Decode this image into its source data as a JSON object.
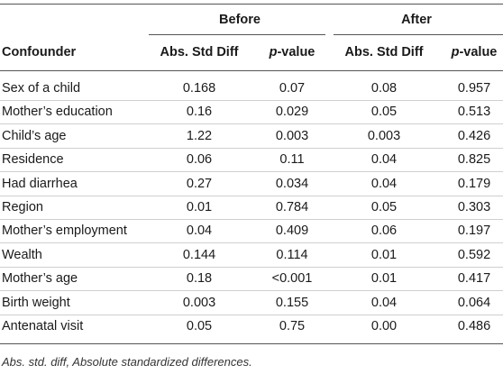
{
  "table": {
    "group_headers": {
      "before": "Before",
      "after": "After"
    },
    "columns": {
      "confounder": "Confounder",
      "abs_std_diff": "Abs. Std Diff",
      "p_value_italic": "p",
      "p_value_suffix": "-value"
    },
    "rows": [
      {
        "confounder": "Sex of a child",
        "before_diff": "0.168",
        "before_p": "0.07",
        "after_diff": "0.08",
        "after_p": "0.957"
      },
      {
        "confounder": "Mother’s education",
        "before_diff": "0.16",
        "before_p": "0.029",
        "after_diff": "0.05",
        "after_p": "0.513"
      },
      {
        "confounder": "Child’s age",
        "before_diff": "1.22",
        "before_p": "0.003",
        "after_diff": "0.003",
        "after_p": "0.426"
      },
      {
        "confounder": "Residence",
        "before_diff": "0.06",
        "before_p": "0.11",
        "after_diff": "0.04",
        "after_p": "0.825"
      },
      {
        "confounder": "Had diarrhea",
        "before_diff": "0.27",
        "before_p": "0.034",
        "after_diff": "0.04",
        "after_p": "0.179"
      },
      {
        "confounder": "Region",
        "before_diff": "0.01",
        "before_p": "0.784",
        "after_diff": "0.05",
        "after_p": "0.303"
      },
      {
        "confounder": "Mother’s employment",
        "before_diff": "0.04",
        "before_p": "0.409",
        "after_diff": "0.06",
        "after_p": "0.197"
      },
      {
        "confounder": "Wealth",
        "before_diff": "0.144",
        "before_p": "0.114",
        "after_diff": "0.01",
        "after_p": "0.592"
      },
      {
        "confounder": "Mother’s age",
        "before_diff": "0.18",
        "before_p": "<0.001",
        "after_diff": "0.01",
        "after_p": "0.417"
      },
      {
        "confounder": "Birth weight",
        "before_diff": "0.003",
        "before_p": "0.155",
        "after_diff": "0.04",
        "after_p": "0.064"
      },
      {
        "confounder": "Antenatal visit",
        "before_diff": "0.05",
        "before_p": "0.75",
        "after_diff": "0.00",
        "after_p": "0.486"
      }
    ],
    "footnote": "Abs. std. diff, Absolute standardized differences."
  },
  "colors": {
    "rule_dark": "#555555",
    "rule_light": "#cfcfcf",
    "text": "#1a1a1a"
  }
}
